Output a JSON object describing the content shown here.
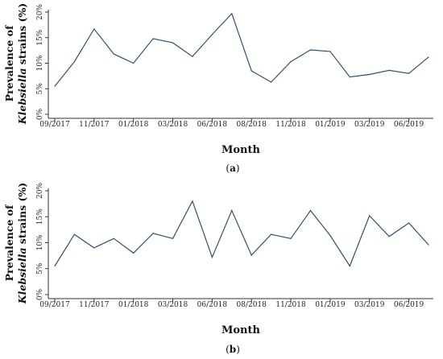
{
  "chart_data": [
    {
      "type": "line",
      "panel_label": "a",
      "xlabel": "Month",
      "ylabel_prefix": "Prevalence of",
      "ylabel_italic": "Klebsiella",
      "ylabel_suffix": " strains (%)",
      "ylim": [
        0,
        20
      ],
      "yticks": [
        "0%",
        "5%",
        "10%",
        "15%",
        "20%"
      ],
      "xtick_labels": [
        "09/2017",
        "11/2017",
        "01/2018",
        "03/2018",
        "06/2018",
        "08/2018",
        "11/2018",
        "01/2019",
        "03/2019",
        "06/2019"
      ],
      "xtick_index": [
        0,
        2,
        4,
        6,
        8,
        10,
        12,
        14,
        16,
        18
      ],
      "line_color": "#33506e",
      "grid": false,
      "values": [
        5.5,
        10.3,
        16.7,
        11.8,
        10.0,
        14.8,
        14.0,
        11.3,
        15.6,
        19.7,
        8.5,
        6.3,
        10.3,
        12.6,
        12.3,
        7.3,
        7.8,
        8.6,
        8.0,
        11.2
      ]
    },
    {
      "type": "line",
      "panel_label": "b",
      "xlabel": "Month",
      "ylabel_prefix": "Prevalence of",
      "ylabel_italic": "Klebsiella",
      "ylabel_suffix": " strains (%)",
      "ylim": [
        0,
        20
      ],
      "yticks": [
        "0%",
        "5%",
        "10%",
        "15%",
        "20%"
      ],
      "xtick_labels": [
        "09/2017",
        "11/2017",
        "01/2018",
        "03/2018",
        "06/2018",
        "08/2018",
        "11/2018",
        "01/2019",
        "03/2019",
        "06/2019"
      ],
      "xtick_index": [
        0,
        2,
        4,
        6,
        8,
        10,
        12,
        14,
        16,
        18
      ],
      "line_color": "#33506e",
      "grid": false,
      "values": [
        5.5,
        11.6,
        9.0,
        10.8,
        8.0,
        11.8,
        10.8,
        18.0,
        7.2,
        16.2,
        7.6,
        11.6,
        10.8,
        16.2,
        11.4,
        5.5,
        15.2,
        11.2,
        13.8,
        9.6
      ]
    }
  ]
}
